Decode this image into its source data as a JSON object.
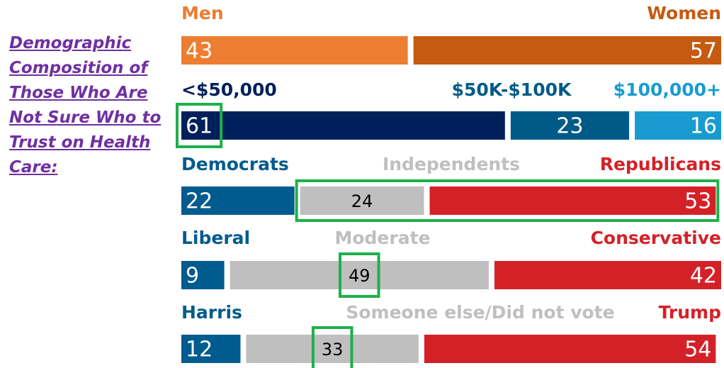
{
  "title": "Demographic Composition of Those Who Are Not Sure Who to Trust on Health Care:",
  "chart_data": [
    {
      "type": "stacked_bar",
      "xlim": [
        0,
        100
      ],
      "series": [
        {
          "name": "Men",
          "color": "#ED7D31",
          "label_color": "#ED7D31",
          "values": [
            43
          ]
        },
        {
          "name": "Women",
          "color": "#C55A11",
          "label_color": "#C55A11",
          "values": [
            57
          ]
        }
      ]
    },
    {
      "type": "stacked_bar",
      "xlim": [
        0,
        100
      ],
      "series": [
        {
          "name": "<$50,000",
          "color": "#00205B",
          "label_color": "#00205B",
          "values": [
            61
          ],
          "highlight": true
        },
        {
          "name": "$50K-$100K",
          "color": "#005A87",
          "label_color": "#005A87",
          "values": [
            23
          ]
        },
        {
          "name": "$100,000+",
          "color": "#1A9BD0",
          "label_color": "#1A9BD0",
          "values": [
            16
          ]
        }
      ]
    },
    {
      "type": "stacked_bar",
      "xlim": [
        0,
        100
      ],
      "series": [
        {
          "name": "Democrats",
          "color": "#005B8E",
          "label_color": "#005B8E",
          "values": [
            22
          ]
        },
        {
          "name": "Independents",
          "color": "#BFBFBF",
          "label_color": "#BFBFBF",
          "values": [
            24
          ],
          "highlight": true
        },
        {
          "name": "Republicans",
          "color": "#D42128",
          "label_color": "#D42128",
          "values": [
            53
          ],
          "highlight": true
        }
      ]
    },
    {
      "type": "stacked_bar",
      "xlim": [
        0,
        100
      ],
      "series": [
        {
          "name": "Liberal",
          "color": "#005B8E",
          "label_color": "#005B8E",
          "values": [
            9
          ]
        },
        {
          "name": "Moderate",
          "color": "#BFBFBF",
          "label_color": "#BFBFBF",
          "values": [
            49
          ],
          "highlight": true
        },
        {
          "name": "Conservative",
          "color": "#D42128",
          "label_color": "#D42128",
          "values": [
            42
          ]
        }
      ]
    },
    {
      "type": "stacked_bar",
      "xlim": [
        0,
        100
      ],
      "series": [
        {
          "name": "Harris",
          "color": "#005B8E",
          "label_color": "#005B8E",
          "values": [
            12
          ]
        },
        {
          "name": "Someone else/Did not vote",
          "color": "#BFBFBF",
          "label_color": "#BFBFBF",
          "values": [
            33
          ],
          "highlight": true
        },
        {
          "name": "Trump",
          "color": "#D42128",
          "label_color": "#D42128",
          "values": [
            54
          ]
        }
      ]
    }
  ]
}
